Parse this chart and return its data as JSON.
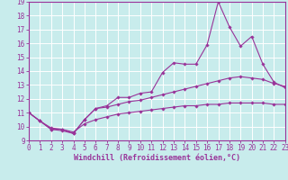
{
  "xlabel": "Windchill (Refroidissement éolien,°C)",
  "ylabel": "",
  "xlim": [
    0,
    23
  ],
  "ylim": [
    9,
    19
  ],
  "xticks": [
    0,
    1,
    2,
    3,
    4,
    5,
    6,
    7,
    8,
    9,
    10,
    11,
    12,
    13,
    14,
    15,
    16,
    17,
    18,
    19,
    20,
    21,
    22,
    23
  ],
  "yticks": [
    9,
    10,
    11,
    12,
    13,
    14,
    15,
    16,
    17,
    18,
    19
  ],
  "background_color": "#c8ecec",
  "grid_color": "#ffffff",
  "line_color": "#993399",
  "line1_x": [
    0,
    1,
    2,
    3,
    4,
    5,
    6,
    7,
    8,
    9,
    10,
    11,
    12,
    13,
    14,
    15,
    16,
    17,
    18,
    19,
    20,
    21,
    22,
    23
  ],
  "line1_y": [
    11.0,
    10.4,
    9.8,
    9.7,
    9.5,
    10.5,
    11.3,
    11.5,
    12.1,
    12.1,
    12.4,
    12.5,
    13.9,
    14.6,
    14.5,
    14.5,
    15.9,
    19.0,
    17.2,
    15.8,
    16.5,
    14.5,
    13.2,
    12.8
  ],
  "line2_x": [
    0,
    1,
    2,
    3,
    4,
    5,
    6,
    7,
    8,
    9,
    10,
    11,
    12,
    13,
    14,
    15,
    16,
    17,
    18,
    19,
    20,
    21,
    22,
    23
  ],
  "line2_y": [
    11.0,
    10.4,
    9.8,
    9.8,
    9.5,
    10.5,
    11.3,
    11.4,
    11.6,
    11.8,
    11.9,
    12.1,
    12.3,
    12.5,
    12.7,
    12.9,
    13.1,
    13.3,
    13.5,
    13.6,
    13.5,
    13.4,
    13.1,
    12.9
  ],
  "line3_x": [
    0,
    1,
    2,
    3,
    4,
    5,
    6,
    7,
    8,
    9,
    10,
    11,
    12,
    13,
    14,
    15,
    16,
    17,
    18,
    19,
    20,
    21,
    22,
    23
  ],
  "line3_y": [
    11.0,
    10.4,
    9.9,
    9.8,
    9.6,
    10.2,
    10.5,
    10.7,
    10.9,
    11.0,
    11.1,
    11.2,
    11.3,
    11.4,
    11.5,
    11.5,
    11.6,
    11.6,
    11.7,
    11.7,
    11.7,
    11.7,
    11.6,
    11.6
  ],
  "tick_fontsize": 5.5,
  "xlabel_fontsize": 6.0
}
